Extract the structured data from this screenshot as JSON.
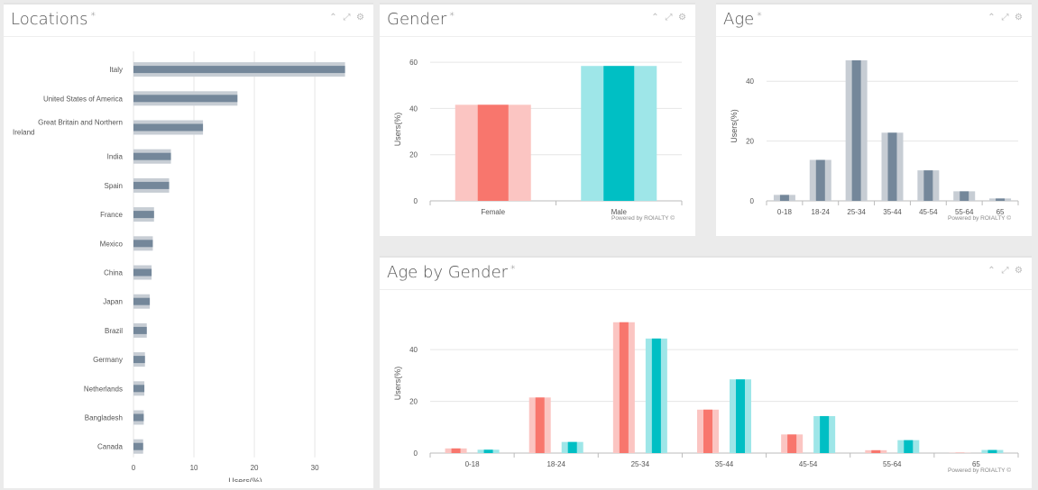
{
  "panels": {
    "locations": {
      "title": "Locations",
      "asterisk": "*"
    },
    "gender": {
      "title": "Gender",
      "asterisk": "*"
    },
    "age": {
      "title": "Age",
      "asterisk": "*"
    },
    "age_gender": {
      "title": "Age by Gender",
      "asterisk": "*"
    }
  },
  "powered_by": "Powered by ROIALTY ©",
  "icons": {
    "collapse": "chevron-up-icon",
    "expand": "expand-icon",
    "settings": "gear-icon"
  },
  "colors": {
    "grey_light": "#c7cdd4",
    "grey_dark": "#74879a",
    "female_light": "#fbc5c2",
    "female_dark": "#f8766d",
    "male_light": "#9ee6e8",
    "male_dark": "#00bfc4",
    "grid": "#e6e6e6"
  },
  "chart_data": [
    {
      "id": "locations",
      "type": "bar",
      "orientation": "horizontal",
      "categories": [
        "Italy",
        "United States of America",
        "Great Britain and Northern Ireland",
        "India",
        "Spain",
        "France",
        "Mexico",
        "China",
        "Japan",
        "Brazil",
        "Germany",
        "Netherlands",
        "Bangladesh",
        "Canada"
      ],
      "values": [
        35,
        17.2,
        11.5,
        6.2,
        5.9,
        3.4,
        3.2,
        3.0,
        2.7,
        2.2,
        1.9,
        1.8,
        1.7,
        1.6
      ],
      "xlabel": "Users(%)",
      "ylabel": "",
      "xticks": [
        0,
        10,
        20,
        30
      ],
      "xlim": [
        0,
        37
      ]
    },
    {
      "id": "gender",
      "type": "bar",
      "categories": [
        "Female",
        "Male"
      ],
      "values": [
        41.6,
        58.4
      ],
      "ylabel": "Users(%)",
      "yticks": [
        0,
        20,
        40,
        60
      ],
      "ylim": [
        0,
        62
      ]
    },
    {
      "id": "age",
      "type": "bar",
      "categories": [
        "0-18",
        "18-24",
        "25-34",
        "35-44",
        "45-54",
        "55-64",
        "65"
      ],
      "values": [
        2.0,
        13.7,
        47.0,
        22.8,
        10.2,
        3.2,
        0.8
      ],
      "ylabel": "Users(%)",
      "yticks": [
        0,
        20,
        40
      ],
      "ylim": [
        0,
        50
      ]
    },
    {
      "id": "age_gender",
      "type": "bar",
      "categories": [
        "0-18",
        "18-24",
        "25-34",
        "35-44",
        "45-54",
        "55-64",
        "65"
      ],
      "series": [
        {
          "values": [
            1.8,
            21.5,
            50.6,
            16.8,
            7.2,
            1.1,
            0.1
          ]
        },
        {
          "values": [
            1.3,
            4.3,
            44.3,
            28.5,
            14.3,
            5.0,
            1.2
          ]
        }
      ],
      "ylabel": "Users(%)",
      "yticks": [
        0,
        20,
        40
      ],
      "ylim": [
        0,
        54
      ]
    }
  ]
}
